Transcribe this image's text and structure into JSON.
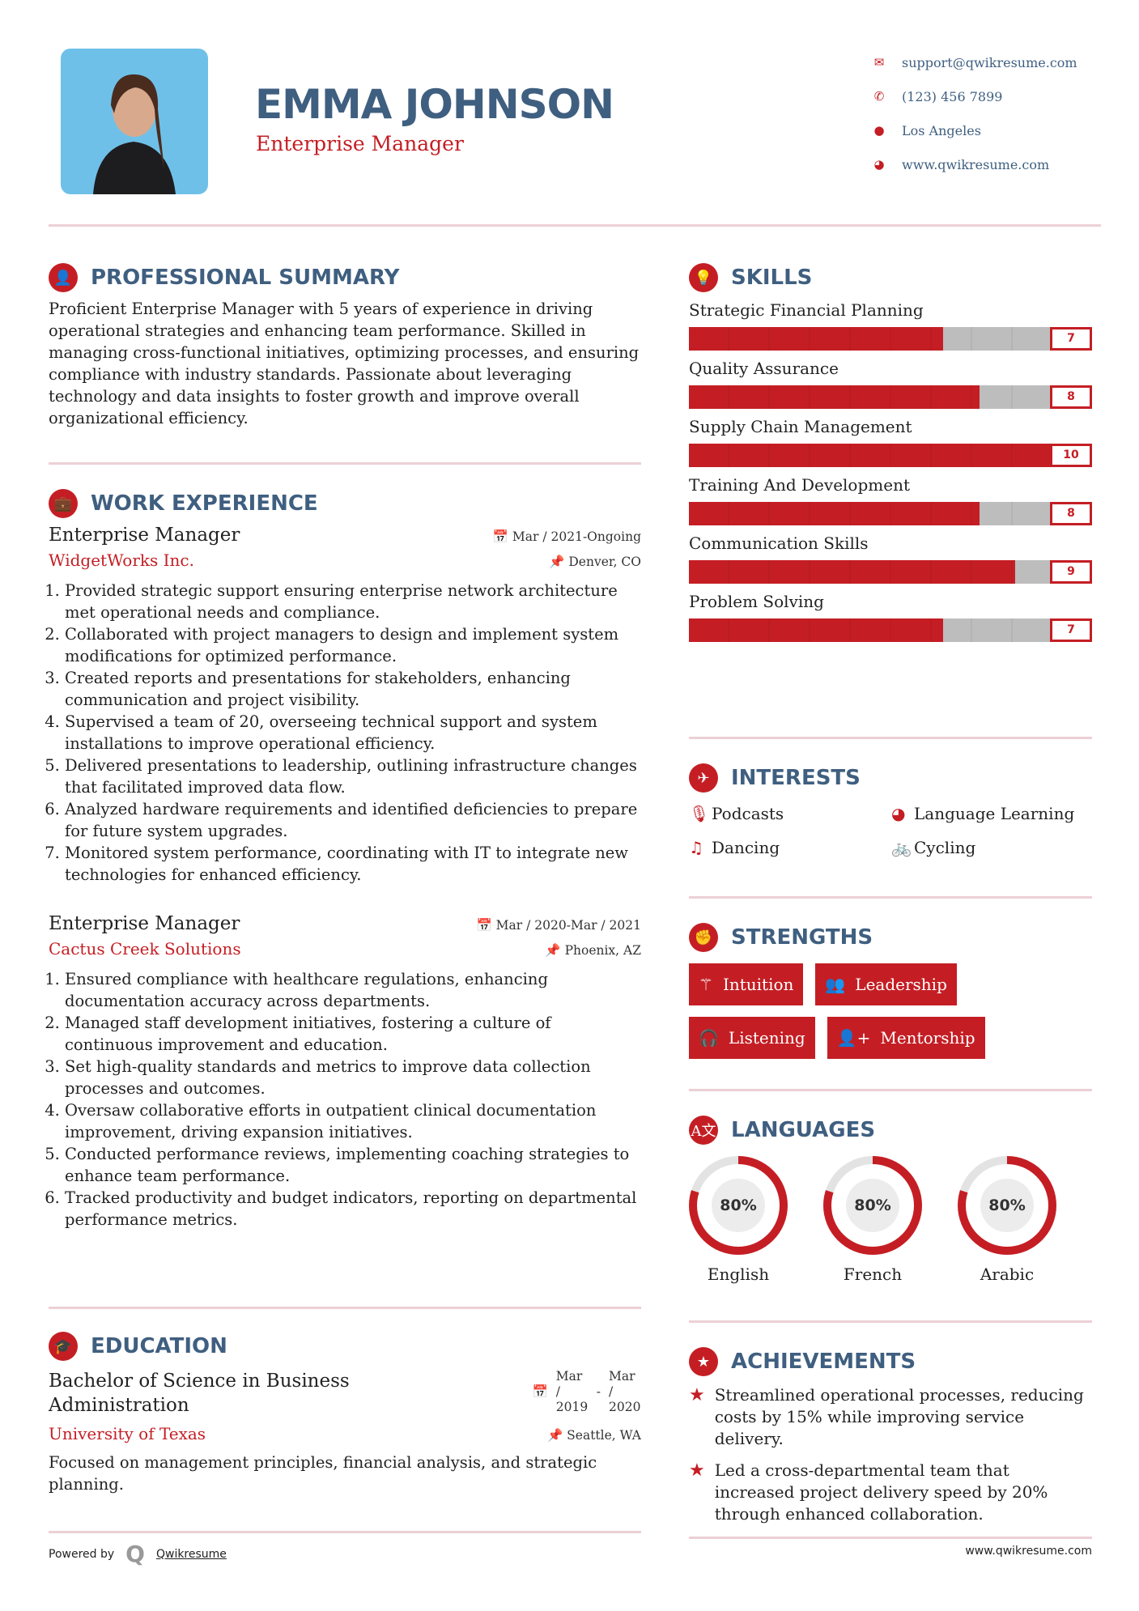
{
  "header": {
    "name": "EMMA JOHNSON",
    "title": "Enterprise Manager",
    "contacts": [
      {
        "icon": "envelope-icon",
        "text": "support@qwikresume.com"
      },
      {
        "icon": "phone-icon",
        "text": "(123) 456 7899"
      },
      {
        "icon": "map-pin-icon",
        "text": "Los Angeles"
      },
      {
        "icon": "globe-icon",
        "text": "www.qwikresume.com"
      }
    ]
  },
  "summary": {
    "heading": "PROFESSIONAL SUMMARY",
    "text": "Proficient Enterprise Manager with 5 years of experience in driving operational strategies and enhancing team performance. Skilled in managing cross-functional initiatives, optimizing processes, and ensuring compliance with industry standards. Passionate about leveraging technology and data insights to foster growth and improve overall organizational efficiency."
  },
  "work": {
    "heading": "WORK EXPERIENCE",
    "jobs": [
      {
        "title": "Enterprise Manager",
        "date": "Mar / 2021-Ongoing",
        "company": "WidgetWorks Inc.",
        "location": "Denver, CO",
        "bullets": [
          "Provided strategic support ensuring enterprise network architecture met operational needs and compliance.",
          "Collaborated with project managers to design and implement system modifications for optimized performance.",
          "Created reports and presentations for stakeholders, enhancing communication and project visibility.",
          "Supervised a team of 20, overseeing technical support and system installations to improve operational efficiency.",
          "Delivered presentations to leadership, outlining infrastructure changes that facilitated improved data flow.",
          "Analyzed hardware requirements and identified deficiencies to prepare for future system upgrades.",
          "Monitored system performance, coordinating with IT to integrate new technologies for enhanced efficiency."
        ]
      },
      {
        "title": "Enterprise Manager",
        "date": "Mar / 2020-Mar / 2021",
        "company": "Cactus Creek Solutions",
        "location": "Phoenix, AZ",
        "bullets": [
          "Ensured compliance with healthcare regulations, enhancing documentation accuracy across departments.",
          "Managed staff development initiatives, fostering a culture of continuous improvement and education.",
          "Set high-quality standards and metrics to improve data collection processes and outcomes.",
          "Oversaw collaborative efforts in outpatient clinical documentation improvement, driving expansion initiatives.",
          "Conducted performance reviews, implementing coaching strategies to enhance team performance.",
          "Tracked productivity and budget indicators, reporting on departmental performance metrics."
        ]
      }
    ]
  },
  "education": {
    "heading": "EDUCATION",
    "degree": "Bachelor of Science in Business Administration",
    "start": "Mar / 2019",
    "sep": "-",
    "end": "Mar / 2020",
    "school": "University of Texas",
    "location": "Seattle, WA",
    "desc": "Focused on management principles, financial analysis, and strategic planning."
  },
  "skills": {
    "heading": "SKILLS",
    "items": [
      {
        "name": "Strategic Financial Planning",
        "value": 7
      },
      {
        "name": "Quality Assurance",
        "value": 8
      },
      {
        "name": "Supply Chain Management",
        "value": 10
      },
      {
        "name": "Training And Development",
        "value": 8
      },
      {
        "name": "Communication Skills",
        "value": 9
      },
      {
        "name": "Problem Solving",
        "value": 7
      }
    ]
  },
  "interests": {
    "heading": "INTERESTS",
    "items": [
      {
        "icon": "microphone-icon",
        "label": "Podcasts"
      },
      {
        "icon": "globe-icon",
        "label": "Language Learning"
      },
      {
        "icon": "music-note-icon",
        "label": "Dancing"
      },
      {
        "icon": "bicycle-icon",
        "label": "Cycling"
      }
    ]
  },
  "strengths": {
    "heading": "STRENGTHS",
    "items": [
      {
        "icon": "magic-wand-icon",
        "label": "Intuition"
      },
      {
        "icon": "users-icon",
        "label": "Leadership"
      },
      {
        "icon": "headphones-icon",
        "label": "Listening"
      },
      {
        "icon": "user-plus-icon",
        "label": "Mentorship"
      }
    ]
  },
  "languages": {
    "heading": "LANGUAGES",
    "items": [
      {
        "name": "English",
        "percent": 80,
        "label": "80%"
      },
      {
        "name": "French",
        "percent": 80,
        "label": "80%"
      },
      {
        "name": "Arabic",
        "percent": 80,
        "label": "80%"
      }
    ]
  },
  "achievements": {
    "heading": "ACHIEVEMENTS",
    "items": [
      "Streamlined operational processes, reducing costs by 15% while improving service delivery.",
      "Led a cross-departmental team that increased project delivery speed by 20% through enhanced collaboration."
    ]
  },
  "footer": {
    "powered": "Powered by",
    "brand": "Qwikresume",
    "url": "www.qwikresume.com"
  },
  "colors": {
    "accent": "#c41e24",
    "heading": "#3f5f80",
    "track": "#e3e3e3"
  }
}
